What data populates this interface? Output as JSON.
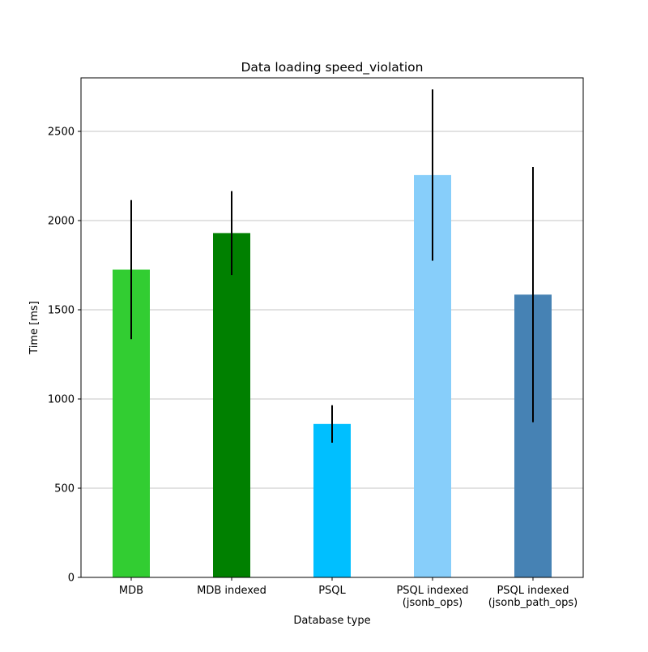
{
  "chart_data": {
    "type": "bar",
    "title": "Data loading speed_violation",
    "xlabel": "Database type",
    "ylabel": "Time [ms]",
    "ylim": [
      0,
      2800
    ],
    "yticks": [
      0,
      500,
      1000,
      1500,
      2000,
      2500
    ],
    "ytick_labels": [
      "0",
      "500",
      "1000",
      "1500",
      "2000",
      "2500"
    ],
    "grid": "horizontal",
    "legend": "none",
    "categories": [
      [
        "MDB"
      ],
      [
        "MDB indexed"
      ],
      [
        "PSQL"
      ],
      [
        "PSQL indexed",
        "(jsonb_ops)"
      ],
      [
        "PSQL indexed",
        "(jsonb_path_ops)"
      ]
    ],
    "values": [
      1725,
      1930,
      860,
      2255,
      1585
    ],
    "errors": [
      390,
      235,
      105,
      480,
      715
    ],
    "colors": [
      "#32cd32",
      "#008000",
      "#00bfff",
      "#87cefa",
      "#4682b4"
    ]
  }
}
